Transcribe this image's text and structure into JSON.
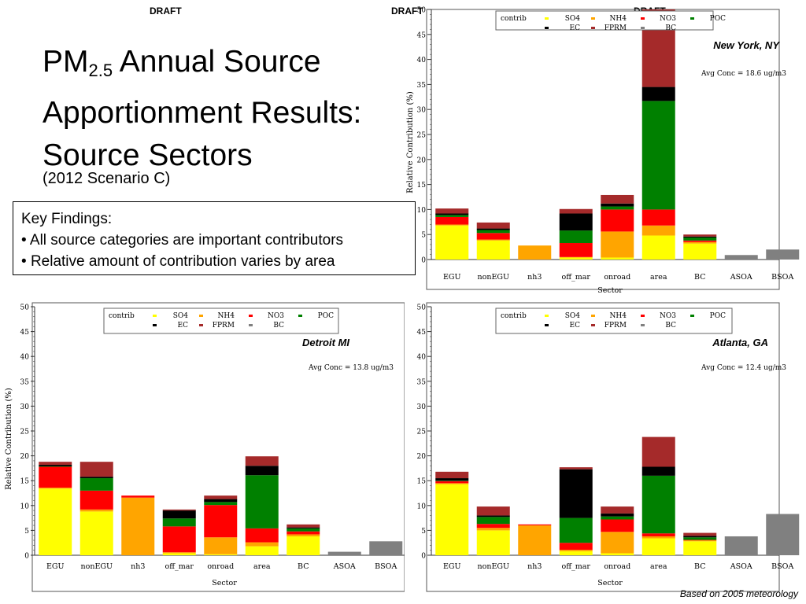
{
  "drafts": [
    "DRAFT",
    "DRAFT",
    "DRAFT"
  ],
  "title": {
    "pm": "PM",
    "pm_sub": "2.5",
    "line1_rest": " Annual Source",
    "line2": "Apportionment Results:",
    "line3": "Source Sectors",
    "subtitle": "(2012 Scenario C)"
  },
  "key_findings": {
    "heading": "Key Findings:",
    "items": [
      "All source categories are important contributors",
      "Relative amount of contribution varies by area"
    ]
  },
  "footnote": "Based on 2005 meteorology",
  "legend": {
    "title": "contrib",
    "entries": [
      {
        "name": "SO4",
        "color": "#ffff00"
      },
      {
        "name": "NH4",
        "color": "#ffa500"
      },
      {
        "name": "NO3",
        "color": "#ff0000"
      },
      {
        "name": "POC",
        "color": "#008000"
      },
      {
        "name": "EC",
        "color": "#000000"
      },
      {
        "name": "FPRM",
        "color": "#a52a2a"
      },
      {
        "name": "BC",
        "color": "#808080"
      }
    ]
  },
  "chart_data": [
    {
      "type": "bar",
      "stacked": true,
      "location": "New York, NY",
      "avg_conc": "Avg Conc =  18.6 ug/m3",
      "xlabel": "Sector",
      "ylabel": "Relative Contribution (%)",
      "ylim": [
        0,
        50
      ],
      "yticks": [
        0,
        5,
        10,
        15,
        20,
        25,
        30,
        35,
        40,
        45,
        50
      ],
      "categories": [
        "EGU",
        "nonEGU",
        "nh3",
        "off_mar",
        "onroad",
        "area",
        "BC",
        "ASOA",
        "BSOA"
      ],
      "series": [
        {
          "name": "SO4",
          "values": [
            6.8,
            3.8,
            0,
            0.4,
            0.4,
            4.8,
            3.2,
            0,
            0
          ]
        },
        {
          "name": "NH4",
          "values": [
            0.2,
            0.2,
            2.8,
            0.1,
            5.2,
            2,
            0.3,
            0,
            0
          ]
        },
        {
          "name": "NO3",
          "values": [
            1.5,
            1.3,
            0,
            2.8,
            4.4,
            3.2,
            0.3,
            0,
            0
          ]
        },
        {
          "name": "POC",
          "values": [
            0.4,
            0.6,
            0,
            2.5,
            0.6,
            21.7,
            0.6,
            0,
            0
          ]
        },
        {
          "name": "EC",
          "values": [
            0.3,
            0.3,
            0,
            3.4,
            0.6,
            2.8,
            0.2,
            0,
            0
          ]
        },
        {
          "name": "FPRM",
          "values": [
            1,
            1.2,
            0,
            0.9,
            1.7,
            15.5,
            0.4,
            0,
            0
          ]
        },
        {
          "name": "BC",
          "values": [
            0,
            0,
            0,
            0,
            0,
            0,
            0,
            0.9,
            2
          ]
        }
      ]
    },
    {
      "type": "bar",
      "stacked": true,
      "location": "Detroit MI",
      "avg_conc": "Avg Conc =  13.8 ug/m3",
      "xlabel": "Sector",
      "ylabel": "Relative Contribution (%)",
      "ylim": [
        0,
        50
      ],
      "yticks": [
        0,
        5,
        10,
        15,
        20,
        25,
        30,
        35,
        40,
        45,
        50
      ],
      "categories": [
        "EGU",
        "nonEGU",
        "nh3",
        "off_mar",
        "onroad",
        "area",
        "BC",
        "ASOA",
        "BSOA"
      ],
      "series": [
        {
          "name": "SO4",
          "values": [
            13.4,
            8.8,
            0,
            0.4,
            0.2,
            1.8,
            3.8,
            0,
            0
          ]
        },
        {
          "name": "NH4",
          "values": [
            0.2,
            0.4,
            11.6,
            0.2,
            3.4,
            0.8,
            0.4,
            0,
            0
          ]
        },
        {
          "name": "NO3",
          "values": [
            4.2,
            3.8,
            0.4,
            5.2,
            6.5,
            2.8,
            0.6,
            0,
            0
          ]
        },
        {
          "name": "POC",
          "values": [
            0.1,
            2.5,
            0,
            1.6,
            0.6,
            10.7,
            0.6,
            0,
            0
          ]
        },
        {
          "name": "EC",
          "values": [
            0.3,
            0.3,
            0,
            1.6,
            0.6,
            1.9,
            0.2,
            0,
            0
          ]
        },
        {
          "name": "FPRM",
          "values": [
            0.6,
            3,
            0,
            0.2,
            0.7,
            1.9,
            0.6,
            0,
            0
          ]
        },
        {
          "name": "BC",
          "values": [
            0,
            0,
            0,
            0,
            0,
            0,
            0,
            0.7,
            2.8
          ]
        }
      ]
    },
    {
      "type": "bar",
      "stacked": true,
      "location": "Atlanta, GA",
      "avg_conc": "Avg Conc =  12.4 ug/m3",
      "xlabel": "Sector",
      "ylabel": "",
      "ylim": [
        0,
        50
      ],
      "yticks": [
        0,
        5,
        10,
        15,
        20,
        25,
        30,
        35,
        40,
        45,
        50
      ],
      "categories": [
        "EGU",
        "nonEGU",
        "nh3",
        "off_mar",
        "onroad",
        "area",
        "BC",
        "ASOA",
        "BSOA"
      ],
      "series": [
        {
          "name": "SO4",
          "values": [
            14.3,
            5,
            0,
            0.8,
            0.4,
            3.4,
            2.8,
            0,
            0
          ]
        },
        {
          "name": "NH4",
          "values": [
            0.2,
            0.5,
            6,
            0.3,
            4.3,
            0.4,
            0.2,
            0,
            0
          ]
        },
        {
          "name": "NO3",
          "values": [
            0.4,
            0.8,
            0.2,
            1.4,
            2.5,
            0.6,
            0.1,
            0,
            0
          ]
        },
        {
          "name": "POC",
          "values": [
            0.1,
            1.4,
            0,
            5,
            0.6,
            11.6,
            0.5,
            0,
            0
          ]
        },
        {
          "name": "EC",
          "values": [
            0.5,
            0.3,
            0,
            9.8,
            0.6,
            1.8,
            0.3,
            0,
            0
          ]
        },
        {
          "name": "FPRM",
          "values": [
            1.3,
            1.8,
            0,
            0.4,
            1.4,
            6,
            0.6,
            0,
            0
          ]
        },
        {
          "name": "BC",
          "values": [
            0,
            0,
            0,
            0,
            0,
            0,
            0,
            3.8,
            8.3
          ]
        }
      ]
    }
  ]
}
